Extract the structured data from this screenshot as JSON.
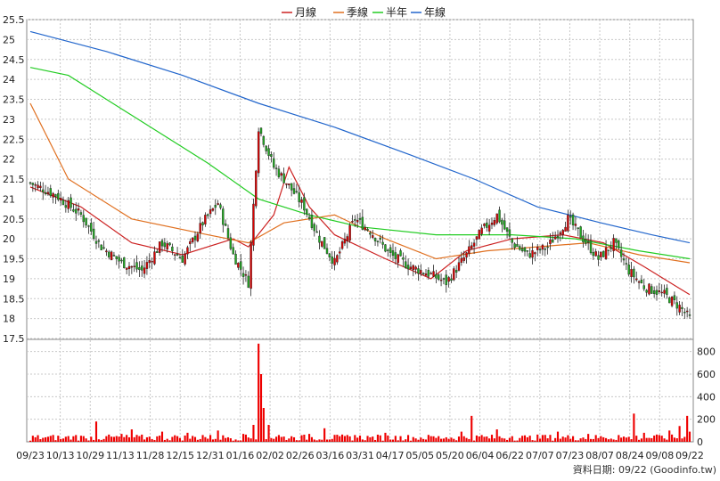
{
  "legend": [
    {
      "label": "月線",
      "color": "#cc2222"
    },
    {
      "label": "季線",
      "color": "#e07020"
    },
    {
      "label": "半年",
      "color": "#22cc22"
    },
    {
      "label": "年線",
      "color": "#2266cc"
    }
  ],
  "footer": "資料日期: 09/22  (Goodinfo.tw)",
  "chart_data": {
    "type": "candlestick",
    "price_axis": {
      "min": 17.5,
      "max": 25.5,
      "ticks": [
        17.5,
        18,
        18.5,
        19,
        19.5,
        20,
        20.5,
        21,
        21.5,
        22,
        22.5,
        23,
        23.5,
        24,
        24.5,
        25,
        25.5
      ]
    },
    "volume_axis": {
      "min": 0,
      "max": 900,
      "ticks": [
        0,
        200,
        400,
        600,
        800
      ]
    },
    "x_labels": [
      "09/23",
      "10/13",
      "10/29",
      "11/13",
      "11/28",
      "12/15",
      "12/31",
      "01/16",
      "02/02",
      "02/26",
      "03/16",
      "03/31",
      "04/17",
      "05/05",
      "05/20",
      "06/04",
      "06/22",
      "07/07",
      "07/23",
      "08/07",
      "08/24",
      "09/08",
      "09/22"
    ],
    "grid": true,
    "colors": {
      "up": "#dd0000",
      "down": "#22aa22",
      "volume": "#ee0000"
    },
    "close_series": [
      {
        "t": 0,
        "v": 21.4
      },
      {
        "t": 10,
        "v": 21.1
      },
      {
        "t": 20,
        "v": 20.6
      },
      {
        "t": 28,
        "v": 19.8
      },
      {
        "t": 36,
        "v": 19.4
      },
      {
        "t": 44,
        "v": 19.2
      },
      {
        "t": 52,
        "v": 19.9
      },
      {
        "t": 60,
        "v": 19.5
      },
      {
        "t": 68,
        "v": 20.4
      },
      {
        "t": 74,
        "v": 20.9
      },
      {
        "t": 80,
        "v": 19.6
      },
      {
        "t": 86,
        "v": 18.9
      },
      {
        "t": 90,
        "v": 22.8
      },
      {
        "t": 96,
        "v": 21.8
      },
      {
        "t": 100,
        "v": 21.5
      },
      {
        "t": 108,
        "v": 20.8
      },
      {
        "t": 114,
        "v": 20.0
      },
      {
        "t": 120,
        "v": 19.4
      },
      {
        "t": 128,
        "v": 20.5
      },
      {
        "t": 134,
        "v": 20.2
      },
      {
        "t": 142,
        "v": 19.6
      },
      {
        "t": 150,
        "v": 19.3
      },
      {
        "t": 158,
        "v": 19.1
      },
      {
        "t": 164,
        "v": 18.9
      },
      {
        "t": 172,
        "v": 19.6
      },
      {
        "t": 178,
        "v": 20.2
      },
      {
        "t": 184,
        "v": 20.6
      },
      {
        "t": 190,
        "v": 19.9
      },
      {
        "t": 196,
        "v": 19.6
      },
      {
        "t": 204,
        "v": 19.8
      },
      {
        "t": 212,
        "v": 20.5
      },
      {
        "t": 218,
        "v": 20.0
      },
      {
        "t": 224,
        "v": 19.5
      },
      {
        "t": 230,
        "v": 19.9
      },
      {
        "t": 236,
        "v": 19.2
      },
      {
        "t": 242,
        "v": 18.8
      },
      {
        "t": 250,
        "v": 18.6
      },
      {
        "t": 256,
        "v": 18.3
      },
      {
        "t": 260,
        "v": 18.0
      }
    ],
    "moving_averages": {
      "月線": [
        {
          "t": 0,
          "v": 21.3
        },
        {
          "t": 20,
          "v": 20.8
        },
        {
          "t": 40,
          "v": 19.9
        },
        {
          "t": 60,
          "v": 19.6
        },
        {
          "t": 80,
          "v": 20.0
        },
        {
          "t": 86,
          "v": 19.8
        },
        {
          "t": 96,
          "v": 20.6
        },
        {
          "t": 102,
          "v": 21.8
        },
        {
          "t": 110,
          "v": 20.8
        },
        {
          "t": 120,
          "v": 20.1
        },
        {
          "t": 140,
          "v": 19.5
        },
        {
          "t": 158,
          "v": 19.0
        },
        {
          "t": 172,
          "v": 19.7
        },
        {
          "t": 190,
          "v": 20.0
        },
        {
          "t": 210,
          "v": 20.1
        },
        {
          "t": 226,
          "v": 19.9
        },
        {
          "t": 242,
          "v": 19.3
        },
        {
          "t": 260,
          "v": 18.6
        }
      ],
      "季線": [
        {
          "t": 0,
          "v": 23.4
        },
        {
          "t": 15,
          "v": 21.5
        },
        {
          "t": 40,
          "v": 20.5
        },
        {
          "t": 70,
          "v": 20.1
        },
        {
          "t": 86,
          "v": 19.9
        },
        {
          "t": 100,
          "v": 20.4
        },
        {
          "t": 120,
          "v": 20.6
        },
        {
          "t": 140,
          "v": 20.0
        },
        {
          "t": 160,
          "v": 19.5
        },
        {
          "t": 180,
          "v": 19.7
        },
        {
          "t": 200,
          "v": 19.8
        },
        {
          "t": 220,
          "v": 19.9
        },
        {
          "t": 240,
          "v": 19.6
        },
        {
          "t": 260,
          "v": 19.4
        }
      ],
      "半年": [
        {
          "t": 0,
          "v": 24.3
        },
        {
          "t": 15,
          "v": 24.1
        },
        {
          "t": 40,
          "v": 23.1
        },
        {
          "t": 70,
          "v": 21.9
        },
        {
          "t": 90,
          "v": 21.0
        },
        {
          "t": 110,
          "v": 20.6
        },
        {
          "t": 130,
          "v": 20.3
        },
        {
          "t": 160,
          "v": 20.1
        },
        {
          "t": 190,
          "v": 20.1
        },
        {
          "t": 215,
          "v": 20.0
        },
        {
          "t": 240,
          "v": 19.7
        },
        {
          "t": 260,
          "v": 19.5
        }
      ],
      "年線": [
        {
          "t": 0,
          "v": 25.2
        },
        {
          "t": 30,
          "v": 24.7
        },
        {
          "t": 60,
          "v": 24.1
        },
        {
          "t": 90,
          "v": 23.4
        },
        {
          "t": 120,
          "v": 22.8
        },
        {
          "t": 150,
          "v": 22.1
        },
        {
          "t": 175,
          "v": 21.5
        },
        {
          "t": 200,
          "v": 20.8
        },
        {
          "t": 225,
          "v": 20.4
        },
        {
          "t": 245,
          "v": 20.1
        },
        {
          "t": 260,
          "v": 19.9
        }
      ]
    },
    "volume": [
      {
        "t": 0,
        "v": 10
      },
      {
        "t": 6,
        "v": 40
      },
      {
        "t": 12,
        "v": 25
      },
      {
        "t": 18,
        "v": 60
      },
      {
        "t": 22,
        "v": 30
      },
      {
        "t": 26,
        "v": 180
      },
      {
        "t": 30,
        "v": 50
      },
      {
        "t": 36,
        "v": 70
      },
      {
        "t": 40,
        "v": 110
      },
      {
        "t": 46,
        "v": 40
      },
      {
        "t": 52,
        "v": 90
      },
      {
        "t": 58,
        "v": 50
      },
      {
        "t": 62,
        "v": 80
      },
      {
        "t": 68,
        "v": 60
      },
      {
        "t": 74,
        "v": 100
      },
      {
        "t": 78,
        "v": 40
      },
      {
        "t": 84,
        "v": 70
      },
      {
        "t": 88,
        "v": 150
      },
      {
        "t": 90,
        "v": 870
      },
      {
        "t": 91,
        "v": 600
      },
      {
        "t": 92,
        "v": 300
      },
      {
        "t": 94,
        "v": 150
      },
      {
        "t": 98,
        "v": 60
      },
      {
        "t": 104,
        "v": 40
      },
      {
        "t": 110,
        "v": 70
      },
      {
        "t": 116,
        "v": 120
      },
      {
        "t": 122,
        "v": 50
      },
      {
        "t": 128,
        "v": 60
      },
      {
        "t": 134,
        "v": 40
      },
      {
        "t": 140,
        "v": 80
      },
      {
        "t": 146,
        "v": 50
      },
      {
        "t": 152,
        "v": 30
      },
      {
        "t": 158,
        "v": 50
      },
      {
        "t": 164,
        "v": 40
      },
      {
        "t": 170,
        "v": 90
      },
      {
        "t": 174,
        "v": 230
      },
      {
        "t": 178,
        "v": 60
      },
      {
        "t": 184,
        "v": 110
      },
      {
        "t": 190,
        "v": 50
      },
      {
        "t": 196,
        "v": 40
      },
      {
        "t": 202,
        "v": 60
      },
      {
        "t": 208,
        "v": 90
      },
      {
        "t": 214,
        "v": 50
      },
      {
        "t": 220,
        "v": 70
      },
      {
        "t": 226,
        "v": 40
      },
      {
        "t": 232,
        "v": 60
      },
      {
        "t": 238,
        "v": 250
      },
      {
        "t": 242,
        "v": 80
      },
      {
        "t": 248,
        "v": 60
      },
      {
        "t": 252,
        "v": 100
      },
      {
        "t": 256,
        "v": 140
      },
      {
        "t": 259,
        "v": 230
      },
      {
        "t": 260,
        "v": 90
      }
    ]
  }
}
